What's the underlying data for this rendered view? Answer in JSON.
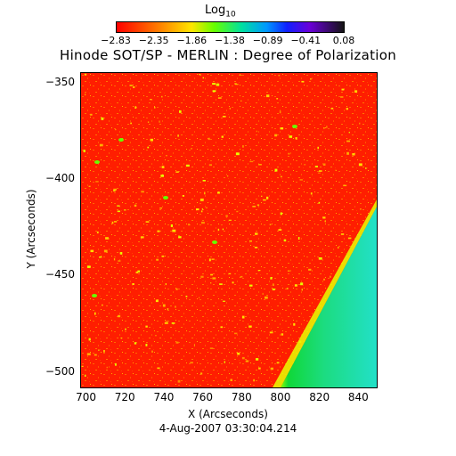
{
  "colorbar": {
    "title": "Log",
    "title_sub": "10",
    "ticks": [
      "-2.83",
      "-2.35",
      "-1.86",
      "-1.38",
      "-0.89",
      "-0.41",
      "0.08"
    ]
  },
  "title": "Hinode SOT/SP - MERLIN : Degree of Polarization",
  "axes": {
    "xlabel": "X (Arcseconds)",
    "ylabel": "Y (Arcseconds)",
    "xticks": [
      "700",
      "720",
      "740",
      "760",
      "780",
      "800",
      "820",
      "840"
    ],
    "yticks": [
      "-350",
      "-400",
      "-450",
      "-500"
    ],
    "xlim": [
      697,
      849
    ],
    "ylim": [
      -508,
      -345
    ]
  },
  "date": "4-Aug-2007 03:30:04.214",
  "colors": {
    "background_map": "#ff1a00",
    "limb_band": "#28e060",
    "off_disk": "#20e0c8"
  }
}
